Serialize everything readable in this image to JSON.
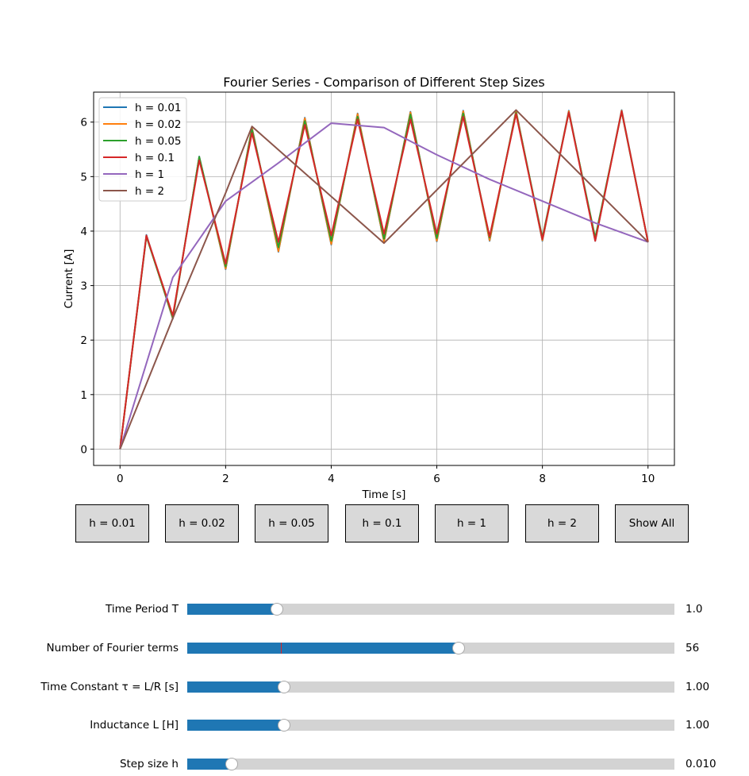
{
  "chart_data": {
    "type": "line",
    "title": "Fourier Series - Comparison of Different Step Sizes",
    "xlabel": "Time [s]",
    "ylabel": "Current [A]",
    "xlim": [
      -0.5,
      10.5
    ],
    "ylim": [
      -0.3,
      6.55
    ],
    "xticks": [
      0,
      2,
      4,
      6,
      8,
      10
    ],
    "yticks": [
      0,
      1,
      2,
      3,
      4,
      5,
      6
    ],
    "grid": true,
    "legend": "top-left",
    "series": [
      {
        "name": "h = 0.01",
        "color": "#1f77b4",
        "width": 2,
        "x": [
          0,
          0.5,
          1,
          1.5,
          2,
          2.5,
          3,
          3.5,
          4,
          4.5,
          5,
          5.5,
          6,
          6.5,
          7,
          7.5,
          8,
          8.5,
          9,
          9.5,
          10
        ],
        "y": [
          0,
          3.93,
          2.39,
          5.37,
          3.3,
          5.9,
          3.62,
          6.08,
          3.75,
          6.16,
          3.8,
          6.19,
          3.81,
          6.21,
          3.82,
          6.21,
          3.82,
          6.21,
          3.82,
          6.22,
          3.8
        ]
      },
      {
        "name": "h = 0.02",
        "color": "#ff7f0e",
        "width": 2,
        "x": [
          0,
          0.5,
          1,
          1.5,
          2,
          2.5,
          3,
          3.5,
          4,
          4.5,
          5,
          5.5,
          6,
          6.5,
          7,
          7.5,
          8,
          8.5,
          9,
          9.5,
          10
        ],
        "y": [
          0,
          3.92,
          2.4,
          5.36,
          3.31,
          5.89,
          3.63,
          6.07,
          3.76,
          6.15,
          3.81,
          6.18,
          3.82,
          6.2,
          3.83,
          6.2,
          3.83,
          6.2,
          3.83,
          6.21,
          3.8
        ]
      },
      {
        "name": "h = 0.05",
        "color": "#2ca02c",
        "width": 2,
        "x": [
          0,
          0.5,
          1,
          1.5,
          2,
          2.5,
          3,
          3.5,
          4,
          4.5,
          5,
          5.5,
          6,
          6.5,
          7,
          7.5,
          8,
          8.5,
          9,
          9.5,
          10
        ],
        "y": [
          0,
          3.9,
          2.42,
          5.36,
          3.35,
          5.86,
          3.7,
          6.02,
          3.82,
          6.1,
          3.86,
          6.14,
          3.87,
          6.16,
          3.88,
          6.17,
          3.88,
          6.18,
          3.88,
          6.19,
          3.8
        ]
      },
      {
        "name": "h = 0.1",
        "color": "#d62728",
        "width": 2,
        "x": [
          0,
          0.5,
          1,
          1.5,
          2,
          2.5,
          3,
          3.5,
          4,
          4.5,
          5,
          5.5,
          6,
          6.5,
          7,
          7.5,
          8,
          8.5,
          9,
          9.5,
          10
        ],
        "y": [
          0,
          3.92,
          2.45,
          5.3,
          3.4,
          5.8,
          3.8,
          5.95,
          3.92,
          6.05,
          3.95,
          6.05,
          3.95,
          6.1,
          3.9,
          6.15,
          3.85,
          6.18,
          3.82,
          6.2,
          3.8
        ]
      },
      {
        "name": "h = 1",
        "color": "#9467bd",
        "width": 2,
        "x": [
          0,
          1,
          2,
          3,
          4,
          5,
          6,
          7,
          8,
          9,
          10
        ],
        "y": [
          0,
          3.15,
          4.55,
          5.25,
          5.98,
          5.9,
          5.4,
          4.95,
          4.55,
          4.15,
          3.8
        ]
      },
      {
        "name": "h = 2",
        "color": "#8c564b",
        "width": 2,
        "x": [
          0,
          1,
          2,
          2.5,
          5,
          7.5,
          10
        ],
        "y": [
          0,
          2.4,
          4.7,
          5.92,
          3.78,
          6.22,
          3.8
        ]
      }
    ]
  },
  "buttons": [
    {
      "label": "h = 0.01"
    },
    {
      "label": "h = 0.02"
    },
    {
      "label": "h = 0.05"
    },
    {
      "label": "h = 0.1"
    },
    {
      "label": "h = 1"
    },
    {
      "label": "h = 2"
    },
    {
      "label": "Show All"
    }
  ],
  "sliders": [
    {
      "label": "Time Period T",
      "value": "1.0",
      "fraction": 0.184
    },
    {
      "label": "Number of Fourier terms",
      "value": "56",
      "fraction": 0.557,
      "marker_fraction": 0.192
    },
    {
      "label": "Time Constant τ = L/R [s]",
      "value": "1.00",
      "fraction": 0.199
    },
    {
      "label": "Inductance L [H]",
      "value": "1.00",
      "fraction": 0.199
    },
    {
      "label": "Step size h",
      "value": "0.010",
      "fraction": 0.091
    }
  ]
}
